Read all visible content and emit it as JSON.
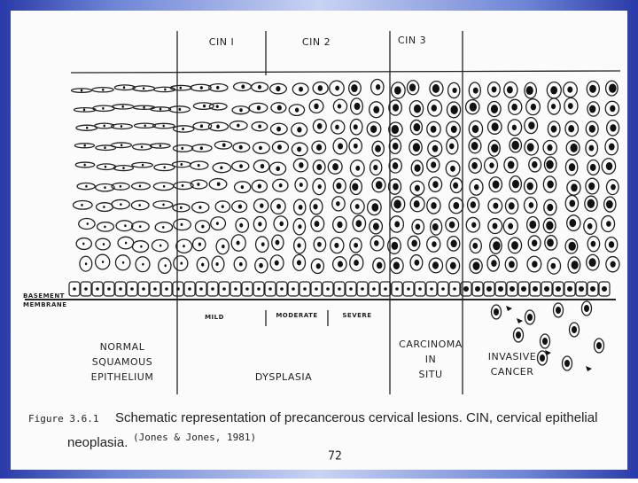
{
  "header": {
    "cin_labels": [
      "CIN I",
      "CIN 2",
      "CIN 3"
    ]
  },
  "basement_membrane": [
    "BASEMENT",
    "MEMBRANE"
  ],
  "grades": [
    "MILD",
    "MODERATE",
    "SEVERE"
  ],
  "regions": [
    {
      "lines": [
        "NORMAL",
        "SQUAMOUS",
        "EPITHELIUM"
      ]
    },
    {
      "lines": [
        "DYSPLASIA"
      ]
    },
    {
      "lines": [
        "CARCINOMA",
        "IN",
        "SITU"
      ]
    },
    {
      "lines": [
        "INVASIVE",
        "CANCER"
      ]
    }
  ],
  "caption": {
    "label": "Figure 3.6.1",
    "text_line1": "Schematic representation of precancerous cervical lesions. CIN, cervical epithelial",
    "text_line2": "neoplasia.",
    "citation": "(Jones & Jones, 1981)"
  },
  "page_number": "72"
}
